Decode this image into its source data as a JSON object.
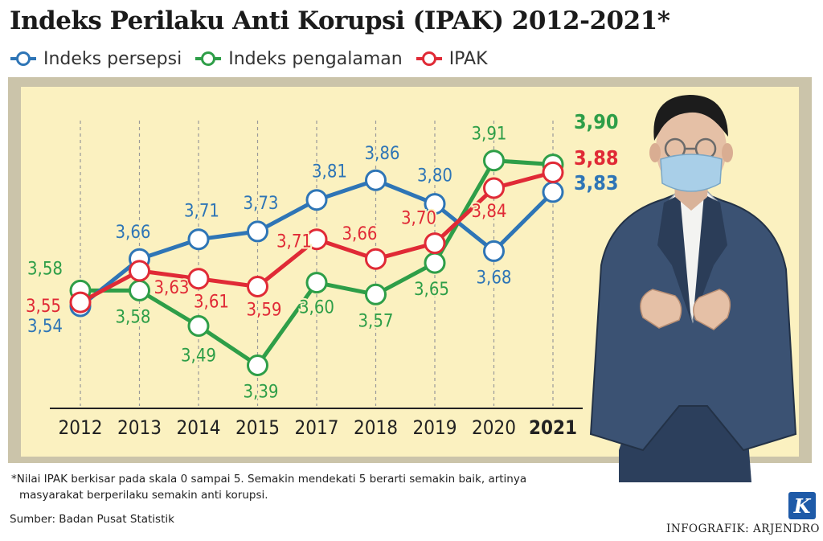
{
  "title": "Indeks Perilaku Anti Korupsi (IPAK) 2012-2021*",
  "footnote": {
    "line1": "*Nilai IPAK berkisar pada skala 0 sampai 5. Semakin mendekati 5 berarti semakin baik, artinya",
    "line2": "masyarakat berperilaku semakin anti korupsi."
  },
  "source": "Sumber: Badan Pusat Statistik",
  "logo_letter": "K",
  "credit": "INFOGRAFIK: ARJENDRO",
  "colors": {
    "persepsi": "#2e75b6",
    "pengalaman": "#2e9e48",
    "ipak": "#e02a36",
    "panel": "#fbf1c0",
    "frame": "#cbc4aa"
  },
  "chart_data": {
    "type": "line",
    "title": "Indeks Perilaku Anti Korupsi (IPAK) 2012-2021*",
    "categories": [
      "2012",
      "2013",
      "2014",
      "2015",
      "2017",
      "2018",
      "2019",
      "2020",
      "2021"
    ],
    "highlight_category": "2021",
    "grid": "vertical dashed lines",
    "legend_position": "top-left",
    "series": [
      {
        "key": "persepsi",
        "name": "Indeks persepsi",
        "values": [
          3.54,
          3.66,
          3.71,
          3.73,
          3.81,
          3.86,
          3.8,
          3.68,
          3.83
        ],
        "labels": [
          "3,54",
          "3,66",
          "3,71",
          "3,73",
          "3,81",
          "3,86",
          "3,80",
          "3,68",
          "3,83"
        ]
      },
      {
        "key": "pengalaman",
        "name": "Indeks pengalaman",
        "values": [
          3.58,
          3.58,
          3.49,
          3.39,
          3.6,
          3.57,
          3.65,
          3.91,
          3.9
        ],
        "labels": [
          "3,58",
          "3,58",
          "3,49",
          "3,39",
          "3,60",
          "3,57",
          "3,65",
          "3,91",
          "3,90"
        ]
      },
      {
        "key": "ipak",
        "name": "IPAK",
        "values": [
          3.55,
          3.63,
          3.61,
          3.59,
          3.71,
          3.66,
          3.7,
          3.84,
          3.88
        ],
        "labels": [
          "3,55",
          "3,63",
          "3,61",
          "3,59",
          "3,71",
          "3,66",
          "3,70",
          "3,84",
          "3,88"
        ]
      }
    ]
  }
}
